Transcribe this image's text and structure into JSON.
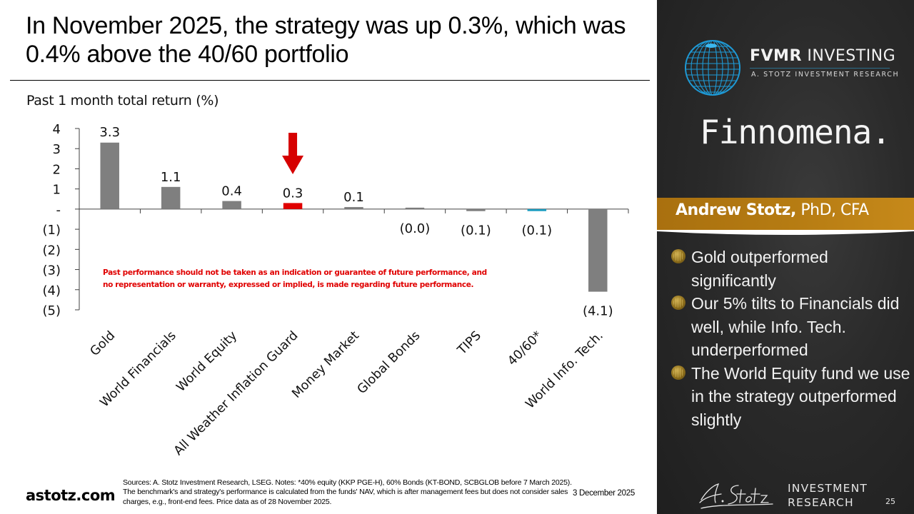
{
  "slide": {
    "title": "In November 2025, the strategy was up 0.3%, which was 0.4% above the 40/60 portfolio",
    "subtitle": "Past 1 month total return (%)",
    "disclaimer_line1": "Past performance should not be taken as an indication or guarantee of future performance, and",
    "disclaimer_line2": "no representation or warranty, expressed or implied, is made regarding future performance.",
    "footer": {
      "site": "astotz.com",
      "notes": "Sources: A. Stotz Investment Research, LSEG. Notes: *40% equity (KKP PGE-H), 60% Bonds (KT-BOND, SCBGLOB before 7 March 2025). The benchmark's and strategy's performance is calculated from the funds' NAV, which is after management fees but does not consider sales charges, e.g., front-end fees. Price data as of 28 November 2025.",
      "date": "3 December 2025"
    }
  },
  "sidebar": {
    "brand_bold": "FVMR",
    "brand_rest": "INVESTING",
    "brand_sub": "A. STOTZ INVESTMENT RESEARCH",
    "partner": "Finnomena.",
    "presenter_name": "Andrew Stotz,",
    "presenter_credentials": "PhD, CFA",
    "bullets": [
      "Gold outperformed significantly",
      "Our 5% tilts to Financials did well, while Info. Tech. underperformed",
      "The World Equity fund we use in the strategy outperformed slightly"
    ],
    "footer_line1": "INVESTMENT",
    "footer_line2": "RESEARCH",
    "page_number": "25"
  },
  "colors": {
    "bar_default": "#7f7f7f",
    "bar_strategy": "#e00000",
    "bar_benchmark": "#1a9bbf",
    "disclaimer": "#e00000",
    "highlight_arrow": "#d60000",
    "presenter_band": "#b57b12"
  },
  "chart_data": {
    "type": "bar",
    "title": "Past 1 month total return (%)",
    "xlabel": "",
    "ylabel": "",
    "categories": [
      "Gold",
      "World Financials",
      "World Equity",
      "All Weather Inflation Guard",
      "Money Market",
      "Global Bonds",
      "TIPS",
      "40/60*",
      "World Info. Tech."
    ],
    "values": [
      3.3,
      1.1,
      0.4,
      0.3,
      0.1,
      -0.0,
      -0.1,
      -0.1,
      -4.1
    ],
    "data_labels": [
      "3.3",
      "1.1",
      "0.4",
      "0.3",
      "0.1",
      "(0.0)",
      "(0.1)",
      "(0.1)",
      "(4.1)"
    ],
    "bar_roles": [
      "default",
      "default",
      "default",
      "strategy",
      "default",
      "default",
      "default",
      "benchmark",
      "default"
    ],
    "highlight_category": "All Weather Inflation Guard",
    "ylim": [
      -5,
      4
    ],
    "yticks": [
      4,
      3,
      2,
      1,
      0,
      -1,
      -2,
      -3,
      -4,
      -5
    ],
    "ytick_labels": [
      "4",
      "3",
      "2",
      "1",
      "-",
      "(1)",
      "(2)",
      "(3)",
      "(4)",
      "(5)"
    ],
    "grid": false,
    "legend": "none"
  }
}
